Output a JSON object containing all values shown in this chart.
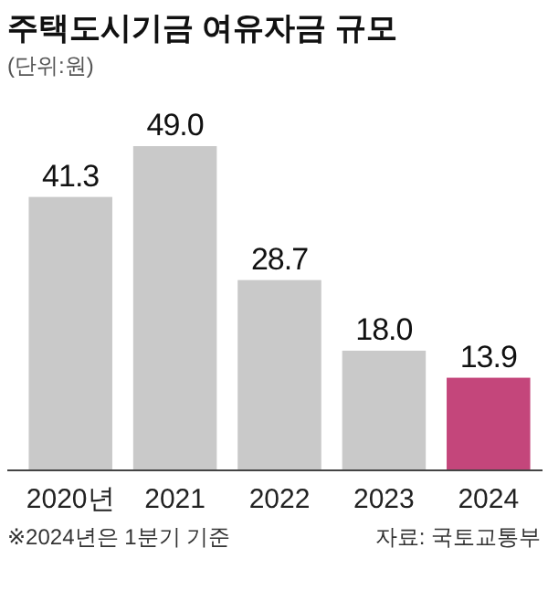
{
  "chart_data": {
    "type": "bar",
    "title": "주택도시기금 여유자금 규모",
    "subtitle": "(단위:원)",
    "categories": [
      "2020년",
      "2021",
      "2022",
      "2023",
      "2024"
    ],
    "values": [
      41.3,
      49.0,
      28.7,
      18.0,
      13.9
    ],
    "colors": [
      "#c9c9c9",
      "#c9c9c9",
      "#c9c9c9",
      "#c9c9c9",
      "#c4467b"
    ],
    "value_labels": [
      "41.3",
      "49.0",
      "28.7",
      "18.0",
      "13.9"
    ],
    "annotations": [
      "※2024년은 1분기 기준",
      "자료: 국토교통부"
    ]
  }
}
